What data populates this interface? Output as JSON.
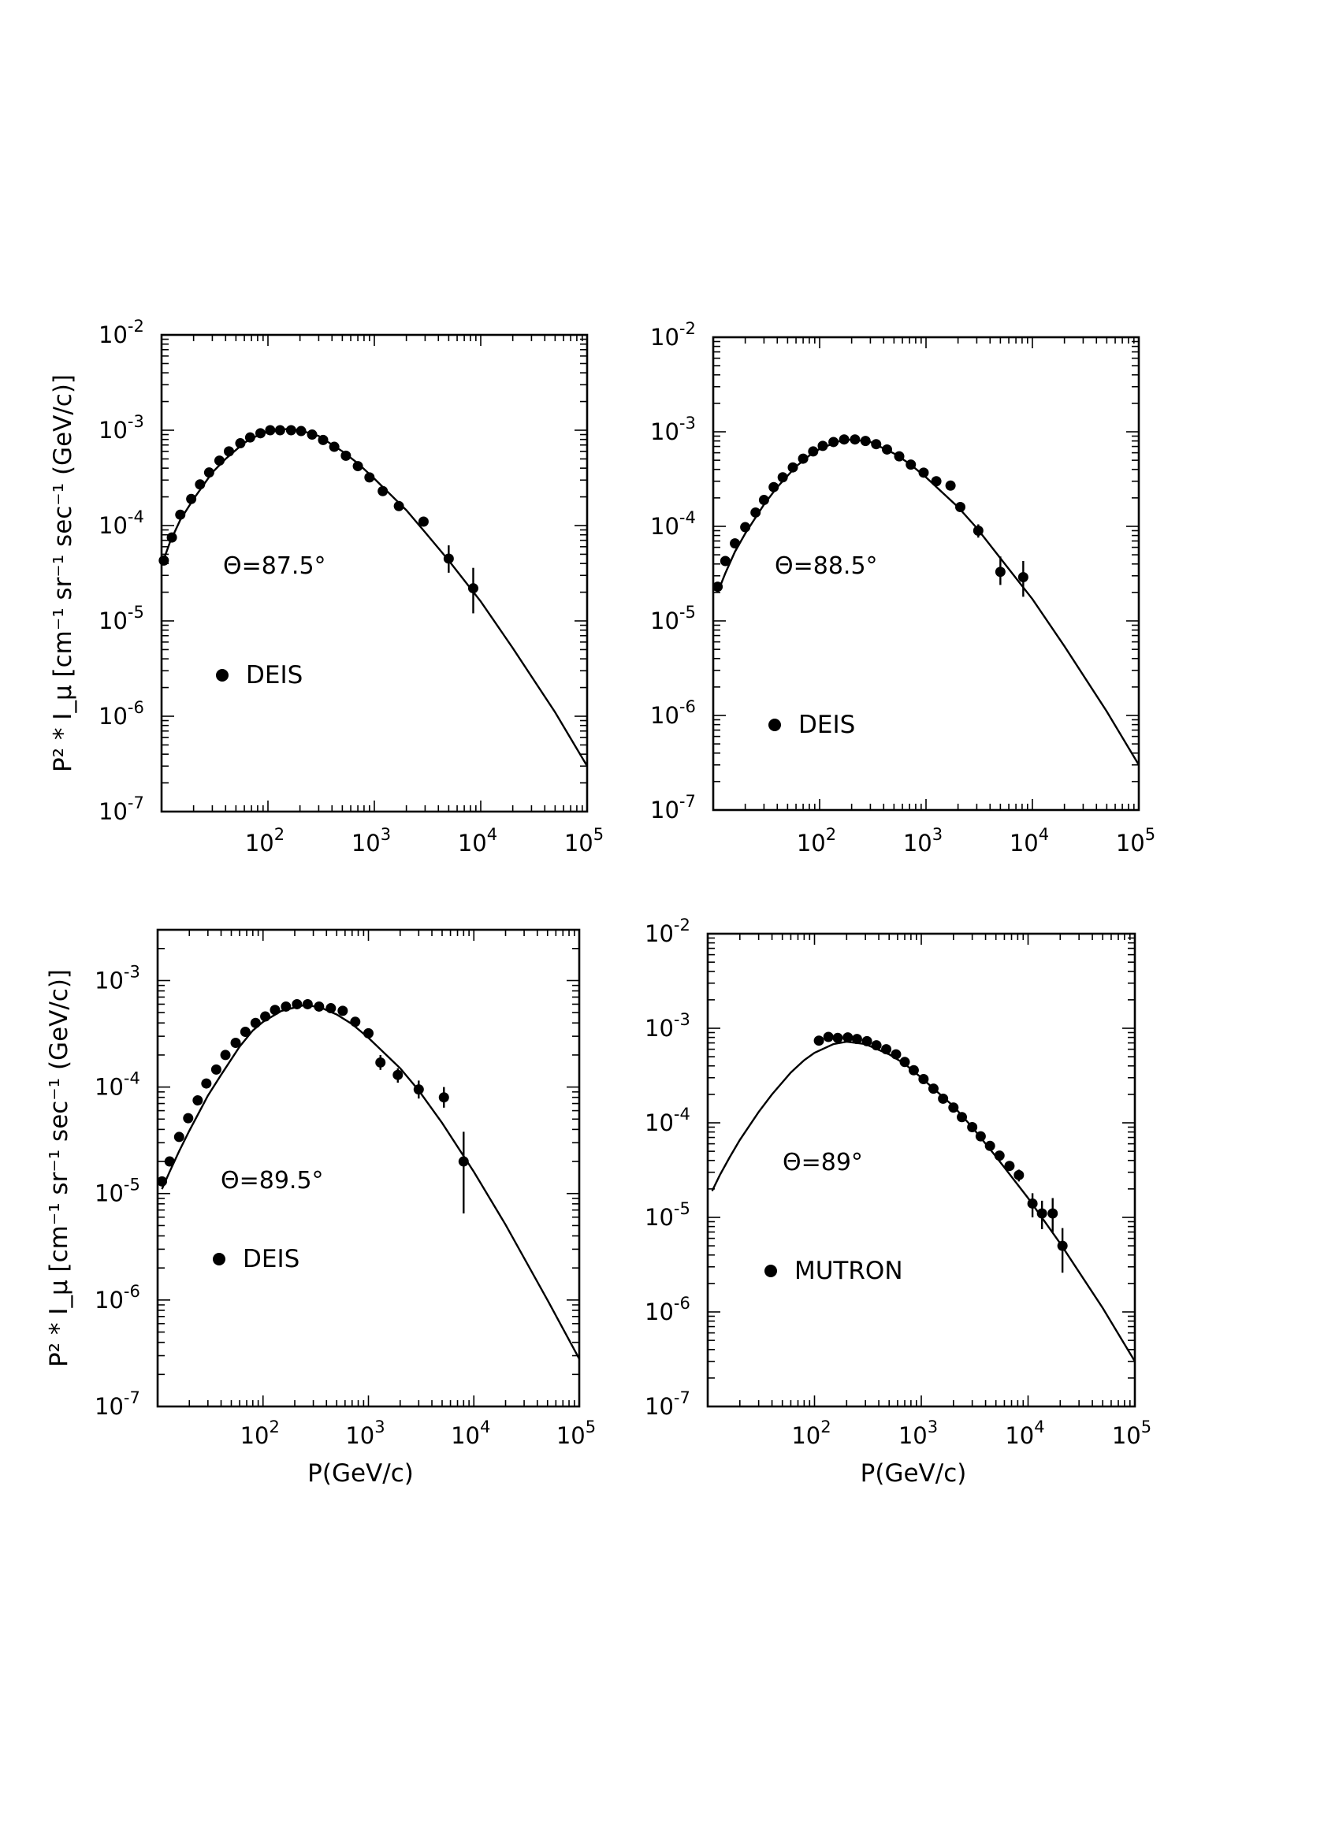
{
  "chart_data": [
    {
      "type": "scatter",
      "angle_label": "Θ=87.5°",
      "legend": "DEIS",
      "xlabel": "",
      "ylabel": "P² * I_μ [cm⁻¹ sr⁻¹ sec⁻¹ (GeV/c)]",
      "xscale": "log",
      "yscale": "log",
      "xlim": [
        10,
        100000
      ],
      "ylim": [
        1e-07,
        0.01
      ],
      "x_ticks": [
        "10^2",
        "10^3",
        "10^4",
        "10^5"
      ],
      "y_ticks": [
        "10^-7",
        "10^-6",
        "10^-5",
        "10^-4",
        "10^-3",
        "10^-2"
      ],
      "points": [
        {
          "x": 10.5,
          "y": 4.3e-05
        },
        {
          "x": 12.5,
          "y": 7.5e-05
        },
        {
          "x": 15,
          "y": 0.00013
        },
        {
          "x": 19,
          "y": 0.00019
        },
        {
          "x": 23,
          "y": 0.00027
        },
        {
          "x": 28,
          "y": 0.00036
        },
        {
          "x": 35,
          "y": 0.00048
        },
        {
          "x": 43,
          "y": 0.0006
        },
        {
          "x": 55,
          "y": 0.00073
        },
        {
          "x": 68,
          "y": 0.00084
        },
        {
          "x": 85,
          "y": 0.00093
        },
        {
          "x": 105,
          "y": 0.001
        },
        {
          "x": 130,
          "y": 0.001
        },
        {
          "x": 165,
          "y": 0.001
        },
        {
          "x": 205,
          "y": 0.00098
        },
        {
          "x": 260,
          "y": 0.0009
        },
        {
          "x": 330,
          "y": 0.00079
        },
        {
          "x": 420,
          "y": 0.00067
        },
        {
          "x": 540,
          "y": 0.00054
        },
        {
          "x": 700,
          "y": 0.00042
        },
        {
          "x": 900,
          "y": 0.00032
        },
        {
          "x": 1200,
          "y": 0.00023
        },
        {
          "x": 1700,
          "y": 0.00016
        },
        {
          "x": 2900,
          "y": 0.00011
        },
        {
          "x": 5000,
          "y": 4.5e-05,
          "err_lo": 3.2e-05,
          "err_hi": 6.2e-05
        },
        {
          "x": 8500,
          "y": 2.2e-05,
          "err_lo": 1.2e-05,
          "err_hi": 3.6e-05
        }
      ],
      "curve": [
        {
          "x": 10,
          "y": 3.8e-05
        },
        {
          "x": 12,
          "y": 6.7e-05
        },
        {
          "x": 15,
          "y": 0.000115
        },
        {
          "x": 20,
          "y": 0.00019
        },
        {
          "x": 30,
          "y": 0.00036
        },
        {
          "x": 40,
          "y": 0.0005
        },
        {
          "x": 60,
          "y": 0.00074
        },
        {
          "x": 80,
          "y": 0.00088
        },
        {
          "x": 100,
          "y": 0.00096
        },
        {
          "x": 150,
          "y": 0.00103
        },
        {
          "x": 200,
          "y": 0.001
        },
        {
          "x": 300,
          "y": 0.00087
        },
        {
          "x": 500,
          "y": 0.0006
        },
        {
          "x": 700,
          "y": 0.00045
        },
        {
          "x": 1000,
          "y": 0.00031
        },
        {
          "x": 2000,
          "y": 0.000145
        },
        {
          "x": 3000,
          "y": 8.5e-05
        },
        {
          "x": 5000,
          "y": 4.3e-05
        },
        {
          "x": 10000,
          "y": 1.6e-05
        },
        {
          "x": 20000,
          "y": 5.2e-06
        },
        {
          "x": 50000,
          "y": 1.1e-06
        },
        {
          "x": 100000,
          "y": 3e-07
        }
      ]
    },
    {
      "type": "scatter",
      "angle_label": "Θ=88.5°",
      "legend": "DEIS",
      "xlabel": "",
      "ylabel": "",
      "xscale": "log",
      "yscale": "log",
      "xlim": [
        10,
        100000
      ],
      "ylim": [
        1e-07,
        0.01
      ],
      "x_ticks": [
        "10^2",
        "10^3",
        "10^4",
        "10^5"
      ],
      "y_ticks": [
        "10^-7",
        "10^-6",
        "10^-5",
        "10^-4",
        "10^-3",
        "10^-2"
      ],
      "points": [
        {
          "x": 11,
          "y": 2.3e-05
        },
        {
          "x": 13,
          "y": 4.3e-05
        },
        {
          "x": 16,
          "y": 6.6e-05
        },
        {
          "x": 20,
          "y": 9.8e-05
        },
        {
          "x": 25,
          "y": 0.00014
        },
        {
          "x": 30,
          "y": 0.00019
        },
        {
          "x": 37,
          "y": 0.00026
        },
        {
          "x": 45,
          "y": 0.00033
        },
        {
          "x": 56,
          "y": 0.00042
        },
        {
          "x": 70,
          "y": 0.00052
        },
        {
          "x": 87,
          "y": 0.00062
        },
        {
          "x": 107,
          "y": 0.00071
        },
        {
          "x": 135,
          "y": 0.00078
        },
        {
          "x": 170,
          "y": 0.00083
        },
        {
          "x": 215,
          "y": 0.00083
        },
        {
          "x": 270,
          "y": 0.0008
        },
        {
          "x": 340,
          "y": 0.00074
        },
        {
          "x": 430,
          "y": 0.00065
        },
        {
          "x": 560,
          "y": 0.00055
        },
        {
          "x": 720,
          "y": 0.00045
        },
        {
          "x": 950,
          "y": 0.00037
        },
        {
          "x": 1250,
          "y": 0.0003
        },
        {
          "x": 1700,
          "y": 0.00027
        },
        {
          "x": 2100,
          "y": 0.00016
        },
        {
          "x": 3100,
          "y": 9e-05,
          "err_lo": 7.6e-05,
          "err_hi": 0.000105
        },
        {
          "x": 5000,
          "y": 3.3e-05,
          "err_lo": 2.4e-05,
          "err_hi": 4.8e-05
        },
        {
          "x": 8200,
          "y": 2.9e-05,
          "err_lo": 1.8e-05,
          "err_hi": 4.3e-05
        }
      ],
      "curve": [
        {
          "x": 11,
          "y": 2e-05
        },
        {
          "x": 13,
          "y": 3.2e-05
        },
        {
          "x": 16,
          "y": 5.4e-05
        },
        {
          "x": 20,
          "y": 8.4e-05
        },
        {
          "x": 30,
          "y": 0.00017
        },
        {
          "x": 40,
          "y": 0.00026
        },
        {
          "x": 60,
          "y": 0.00043
        },
        {
          "x": 80,
          "y": 0.00056
        },
        {
          "x": 100,
          "y": 0.00066
        },
        {
          "x": 150,
          "y": 0.00079
        },
        {
          "x": 200,
          "y": 0.00083
        },
        {
          "x": 300,
          "y": 0.00078
        },
        {
          "x": 500,
          "y": 0.00059
        },
        {
          "x": 700,
          "y": 0.00046
        },
        {
          "x": 1000,
          "y": 0.00033
        },
        {
          "x": 2000,
          "y": 0.00016
        },
        {
          "x": 3000,
          "y": 9.6e-05
        },
        {
          "x": 5000,
          "y": 4.6e-05
        },
        {
          "x": 10000,
          "y": 1.7e-05
        },
        {
          "x": 20000,
          "y": 5.4e-06
        },
        {
          "x": 50000,
          "y": 1.1e-06
        },
        {
          "x": 100000,
          "y": 3e-07
        }
      ]
    },
    {
      "type": "scatter",
      "angle_label": "Θ=89.5°",
      "legend": "DEIS",
      "xlabel": "P(GeV/c)",
      "ylabel": "P² * I_μ [cm⁻¹ sr⁻¹ sec⁻¹ (GeV/c)]",
      "xscale": "log",
      "yscale": "log",
      "xlim": [
        10,
        100000
      ],
      "ylim": [
        1e-07,
        0.003
      ],
      "x_ticks": [
        "10^2",
        "10^3",
        "10^4",
        "10^5"
      ],
      "y_ticks": [
        "10^-7",
        "10^-6",
        "10^-5",
        "10^-4",
        "10^-3"
      ],
      "points": [
        {
          "x": 11,
          "y": 1.3e-05
        },
        {
          "x": 13,
          "y": 2e-05
        },
        {
          "x": 16,
          "y": 3.4e-05
        },
        {
          "x": 19.5,
          "y": 5.1e-05
        },
        {
          "x": 24,
          "y": 7.5e-05
        },
        {
          "x": 29,
          "y": 0.000108
        },
        {
          "x": 36,
          "y": 0.000146
        },
        {
          "x": 44,
          "y": 0.0002
        },
        {
          "x": 55,
          "y": 0.00026
        },
        {
          "x": 68,
          "y": 0.00033
        },
        {
          "x": 85,
          "y": 0.0004
        },
        {
          "x": 105,
          "y": 0.00046
        },
        {
          "x": 130,
          "y": 0.00053
        },
        {
          "x": 165,
          "y": 0.00057
        },
        {
          "x": 210,
          "y": 0.0006
        },
        {
          "x": 265,
          "y": 0.0006
        },
        {
          "x": 340,
          "y": 0.00057
        },
        {
          "x": 440,
          "y": 0.00055
        },
        {
          "x": 570,
          "y": 0.00052
        },
        {
          "x": 750,
          "y": 0.00041
        },
        {
          "x": 1000,
          "y": 0.00032
        },
        {
          "x": 1300,
          "y": 0.00017,
          "err_lo": 0.000145,
          "err_hi": 0.0002
        },
        {
          "x": 1900,
          "y": 0.00013,
          "err_lo": 0.00011,
          "err_hi": 0.00015
        },
        {
          "x": 3000,
          "y": 9.5e-05,
          "err_lo": 7.8e-05,
          "err_hi": 0.000115
        },
        {
          "x": 5200,
          "y": 8e-05,
          "err_lo": 6.4e-05,
          "err_hi": 0.0001
        },
        {
          "x": 8000,
          "y": 2e-05,
          "err_lo": 6.5e-06,
          "err_hi": 3.8e-05
        }
      ],
      "curve": [
        {
          "x": 11,
          "y": 1.1e-05
        },
        {
          "x": 13,
          "y": 1.6e-05
        },
        {
          "x": 16,
          "y": 2.5e-05
        },
        {
          "x": 20,
          "y": 3.9e-05
        },
        {
          "x": 30,
          "y": 8.3e-05
        },
        {
          "x": 40,
          "y": 0.00013
        },
        {
          "x": 60,
          "y": 0.00024
        },
        {
          "x": 80,
          "y": 0.00034
        },
        {
          "x": 100,
          "y": 0.00041
        },
        {
          "x": 150,
          "y": 0.00052
        },
        {
          "x": 250,
          "y": 0.00059
        },
        {
          "x": 350,
          "y": 0.00056
        },
        {
          "x": 500,
          "y": 0.00048
        },
        {
          "x": 700,
          "y": 0.00039
        },
        {
          "x": 1000,
          "y": 0.00029
        },
        {
          "x": 2000,
          "y": 0.00015
        },
        {
          "x": 3000,
          "y": 9.3e-05
        },
        {
          "x": 5000,
          "y": 4.6e-05
        },
        {
          "x": 10000,
          "y": 1.6e-05
        },
        {
          "x": 20000,
          "y": 5.1e-06
        },
        {
          "x": 50000,
          "y": 1e-06
        },
        {
          "x": 100000,
          "y": 2.8e-07
        }
      ]
    },
    {
      "type": "scatter",
      "angle_label": "Θ=89°",
      "legend": "MUTRON",
      "xlabel": "P(GeV/c)",
      "ylabel": "",
      "xscale": "log",
      "yscale": "log",
      "xlim": [
        10,
        100000
      ],
      "ylim": [
        1e-07,
        0.01
      ],
      "x_ticks": [
        "10^2",
        "10^3",
        "10^4",
        "10^5"
      ],
      "y_ticks": [
        "10^-7",
        "10^-6",
        "10^-5",
        "10^-4",
        "10^-3",
        "10^-2"
      ],
      "points": [
        {
          "x": 110,
          "y": 0.00074
        },
        {
          "x": 135,
          "y": 0.00081
        },
        {
          "x": 165,
          "y": 0.00079
        },
        {
          "x": 205,
          "y": 0.0008
        },
        {
          "x": 250,
          "y": 0.00077
        },
        {
          "x": 310,
          "y": 0.00073
        },
        {
          "x": 380,
          "y": 0.00066
        },
        {
          "x": 470,
          "y": 0.0006
        },
        {
          "x": 580,
          "y": 0.00053
        },
        {
          "x": 700,
          "y": 0.00044
        },
        {
          "x": 850,
          "y": 0.00036
        },
        {
          "x": 1050,
          "y": 0.00029
        },
        {
          "x": 1300,
          "y": 0.00023
        },
        {
          "x": 1600,
          "y": 0.00018
        },
        {
          "x": 2000,
          "y": 0.000145
        },
        {
          "x": 2400,
          "y": 0.000115
        },
        {
          "x": 3000,
          "y": 9e-05
        },
        {
          "x": 3600,
          "y": 7.2e-05
        },
        {
          "x": 4400,
          "y": 5.7e-05
        },
        {
          "x": 5400,
          "y": 4.5e-05
        },
        {
          "x": 6700,
          "y": 3.5e-05
        },
        {
          "x": 8200,
          "y": 2.8e-05,
          "err_lo": 2.4e-05,
          "err_hi": 3.2e-05
        },
        {
          "x": 11000,
          "y": 1.4e-05,
          "err_lo": 1e-05,
          "err_hi": 1.8e-05
        },
        {
          "x": 13500,
          "y": 1.1e-05,
          "err_lo": 7.5e-06,
          "err_hi": 1.5e-05
        },
        {
          "x": 17000,
          "y": 1.1e-05,
          "err_lo": 7e-06,
          "err_hi": 1.6e-05
        },
        {
          "x": 21000,
          "y": 5e-06,
          "err_lo": 2.6e-06,
          "err_hi": 7.7e-06
        }
      ],
      "curve": [
        {
          "x": 11,
          "y": 1.9e-05
        },
        {
          "x": 13,
          "y": 2.8e-05
        },
        {
          "x": 16,
          "y": 4.3e-05
        },
        {
          "x": 20,
          "y": 6.6e-05
        },
        {
          "x": 30,
          "y": 0.00013
        },
        {
          "x": 40,
          "y": 0.0002
        },
        {
          "x": 60,
          "y": 0.00034
        },
        {
          "x": 80,
          "y": 0.00046
        },
        {
          "x": 100,
          "y": 0.00055
        },
        {
          "x": 150,
          "y": 0.00068
        },
        {
          "x": 200,
          "y": 0.00072
        },
        {
          "x": 300,
          "y": 0.00068
        },
        {
          "x": 500,
          "y": 0.00053
        },
        {
          "x": 700,
          "y": 0.00042
        },
        {
          "x": 1000,
          "y": 0.0003
        },
        {
          "x": 2000,
          "y": 0.00015
        },
        {
          "x": 3000,
          "y": 9e-05
        },
        {
          "x": 5000,
          "y": 4.4e-05
        },
        {
          "x": 10000,
          "y": 1.6e-05
        },
        {
          "x": 20000,
          "y": 5.3e-06
        },
        {
          "x": 50000,
          "y": 1.1e-06
        },
        {
          "x": 100000,
          "y": 3e-07
        }
      ]
    }
  ]
}
